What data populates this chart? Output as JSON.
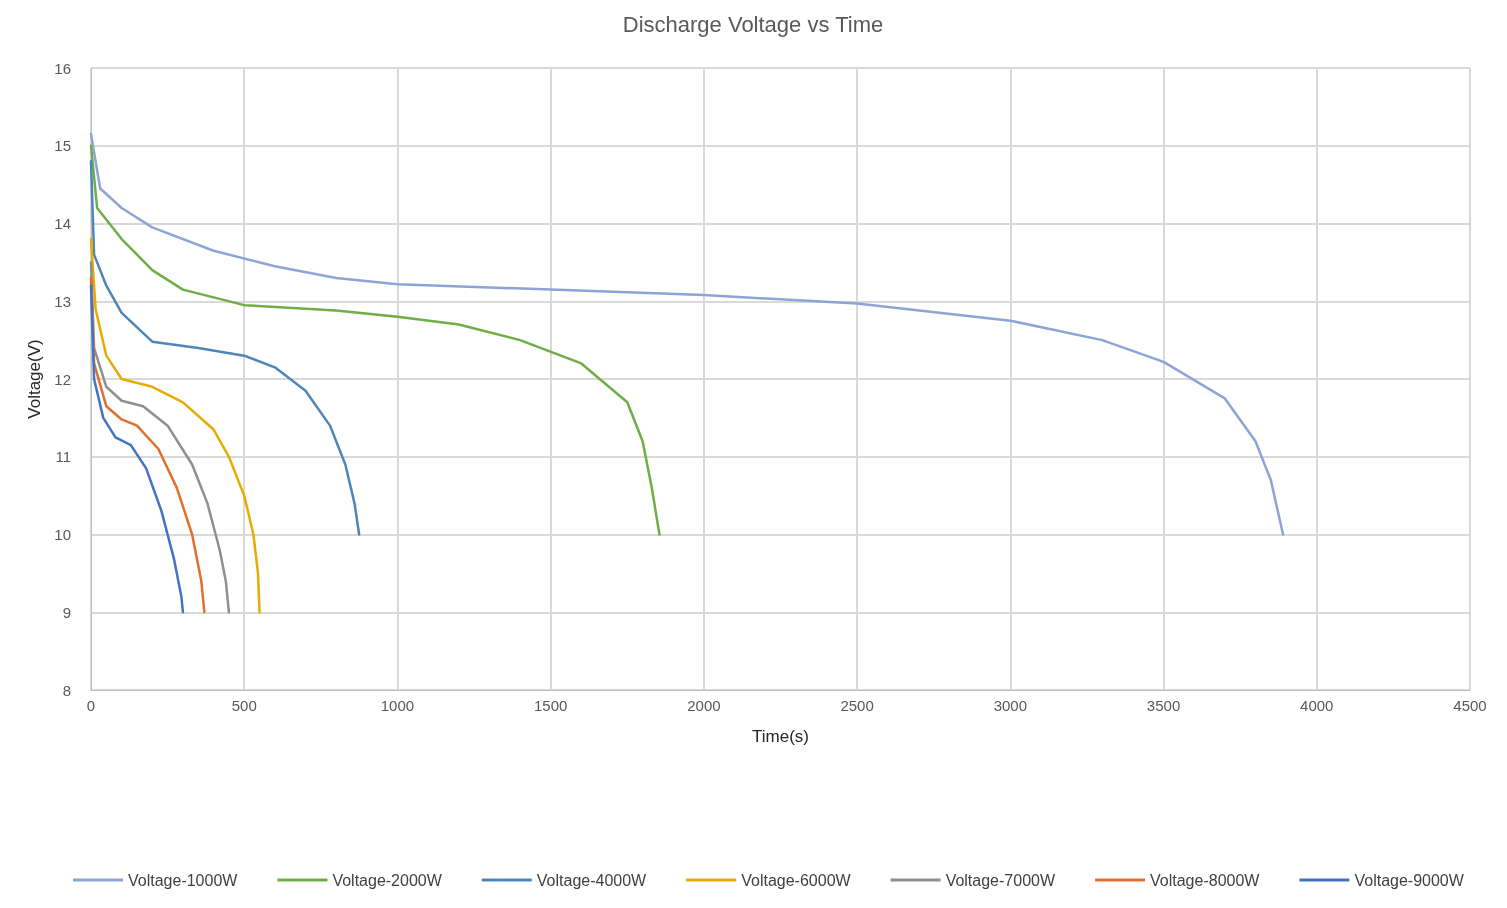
{
  "chart_data": {
    "type": "line",
    "title": "Discharge Voltage vs Time",
    "xlabel": "Time(s)",
    "ylabel": "Voltage(V)",
    "xlim": [
      0,
      4500
    ],
    "xticks": [
      0,
      500,
      1000,
      1500,
      2000,
      2500,
      3000,
      3500,
      4000,
      4500
    ],
    "ylim": [
      8,
      16
    ],
    "yticks": [
      8,
      9,
      10,
      11,
      12,
      13,
      14,
      15,
      16
    ],
    "grid": true,
    "legend": "bottom",
    "marker": "none",
    "line_style": "solid",
    "series": [
      {
        "name": "Voltage-1000W",
        "color": "#8ea3d6",
        "x": [
          0,
          30,
          100,
          200,
          400,
          600,
          800,
          1000,
          1500,
          2000,
          2500,
          3000,
          3300,
          3500,
          3700,
          3800,
          3850,
          3890
        ],
        "values": [
          15.15,
          14.45,
          14.2,
          13.95,
          13.65,
          13.45,
          13.3,
          13.22,
          13.15,
          13.08,
          12.97,
          12.75,
          12.5,
          12.22,
          11.75,
          11.2,
          10.7,
          10
        ]
      },
      {
        "name": "Voltage-2000W",
        "color": "#70ad47",
        "x": [
          0,
          20,
          100,
          200,
          300,
          500,
          800,
          1000,
          1200,
          1400,
          1600,
          1750,
          1800,
          1830,
          1855
        ],
        "values": [
          15,
          14.2,
          13.8,
          13.4,
          13.15,
          12.95,
          12.88,
          12.8,
          12.7,
          12.5,
          12.2,
          11.7,
          11.2,
          10.6,
          10
        ]
      },
      {
        "name": "Voltage-4000W",
        "color": "#4f86b8",
        "x": [
          0,
          10,
          50,
          100,
          200,
          350,
          500,
          600,
          700,
          780,
          830,
          860,
          875
        ],
        "values": [
          14.8,
          13.6,
          13.2,
          12.85,
          12.48,
          12.4,
          12.3,
          12.15,
          11.85,
          11.4,
          10.9,
          10.4,
          10
        ]
      },
      {
        "name": "Voltage-6000W",
        "color": "#e6ac00",
        "x": [
          0,
          15,
          50,
          100,
          200,
          300,
          400,
          450,
          500,
          530,
          545,
          550
        ],
        "values": [
          13.8,
          12.9,
          12.3,
          12,
          11.9,
          11.7,
          11.35,
          11,
          10.5,
          10,
          9.5,
          9
        ]
      },
      {
        "name": "Voltage-7000W",
        "color": "#8f8f8f",
        "x": [
          0,
          10,
          50,
          100,
          170,
          250,
          330,
          380,
          420,
          440,
          450
        ],
        "values": [
          13.5,
          12.4,
          11.9,
          11.72,
          11.65,
          11.4,
          10.9,
          10.4,
          9.8,
          9.4,
          9
        ]
      },
      {
        "name": "Voltage-8000W",
        "color": "#e0702c",
        "x": [
          0,
          10,
          50,
          100,
          150,
          220,
          280,
          330,
          360,
          370
        ],
        "values": [
          13.3,
          12.2,
          11.65,
          11.48,
          11.4,
          11.1,
          10.6,
          10,
          9.4,
          9
        ]
      },
      {
        "name": "Voltage-9000W",
        "color": "#4472c4",
        "x": [
          0,
          10,
          40,
          80,
          130,
          180,
          230,
          270,
          295,
          300
        ],
        "values": [
          13.2,
          12,
          11.5,
          11.25,
          11.15,
          10.85,
          10.3,
          9.7,
          9.2,
          9
        ]
      }
    ]
  }
}
